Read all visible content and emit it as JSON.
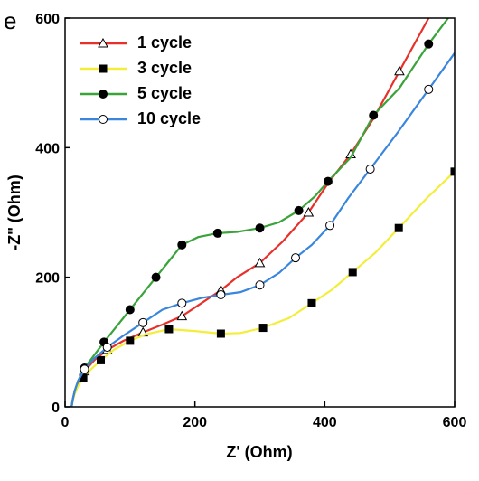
{
  "chart_data": {
    "type": "line",
    "panel_label": "e",
    "xlabel": "Z' (Ohm)",
    "ylabel": "-Z'' (Ohm)",
    "xlim": [
      0,
      600
    ],
    "ylim": [
      0,
      600
    ],
    "xticks": [
      0,
      200,
      400,
      600
    ],
    "yticks": [
      0,
      200,
      400,
      600
    ],
    "legend": "upper left",
    "series": [
      {
        "name": "1 cycle",
        "color": "#e8302a",
        "marker": "triangle-open",
        "x": [
          10,
          12,
          15,
          20,
          30,
          45,
          65,
          90,
          120,
          150,
          180,
          210,
          240,
          265,
          300,
          335,
          375,
          405,
          440,
          475,
          515,
          560
        ],
        "values": [
          0,
          12,
          25,
          38,
          55,
          72,
          88,
          102,
          115,
          127,
          140,
          160,
          180,
          200,
          222,
          255,
          300,
          345,
          390,
          445,
          518,
          600
        ]
      },
      {
        "name": "3 cycle",
        "color": "#f2ee3a",
        "marker": "square-filled",
        "x": [
          10,
          12,
          15,
          20,
          28,
          40,
          55,
          75,
          100,
          125,
          160,
          200,
          240,
          270,
          305,
          345,
          380,
          410,
          443,
          478,
          514,
          557,
          600
        ],
        "values": [
          0,
          10,
          20,
          32,
          45,
          58,
          72,
          88,
          102,
          112,
          120,
          117,
          113,
          114,
          122,
          137,
          160,
          180,
          208,
          238,
          276,
          322,
          363
        ]
      },
      {
        "name": "5 cycle",
        "color": "#3aa33a",
        "marker": "circle-filled",
        "x": [
          10,
          12,
          15,
          20,
          30,
          45,
          60,
          80,
          100,
          120,
          140,
          160,
          180,
          205,
          235,
          265,
          300,
          330,
          360,
          385,
          405,
          440,
          475,
          515,
          560,
          590
        ],
        "values": [
          0,
          12,
          25,
          40,
          60,
          80,
          100,
          125,
          150,
          175,
          200,
          225,
          250,
          262,
          268,
          270,
          276,
          285,
          303,
          325,
          348,
          385,
          450,
          492,
          560,
          600
        ]
      },
      {
        "name": "10 cycle",
        "color": "#3a86dc",
        "marker": "circle-open",
        "x": [
          10,
          12,
          15,
          20,
          30,
          45,
          65,
          90,
          120,
          150,
          180,
          210,
          240,
          270,
          300,
          330,
          355,
          380,
          408,
          436,
          470,
          512,
          560,
          600
        ],
        "values": [
          0,
          12,
          25,
          40,
          58,
          75,
          92,
          110,
          130,
          150,
          160,
          168,
          173,
          177,
          188,
          207,
          230,
          250,
          280,
          322,
          367,
          423,
          490,
          546
        ]
      }
    ]
  }
}
